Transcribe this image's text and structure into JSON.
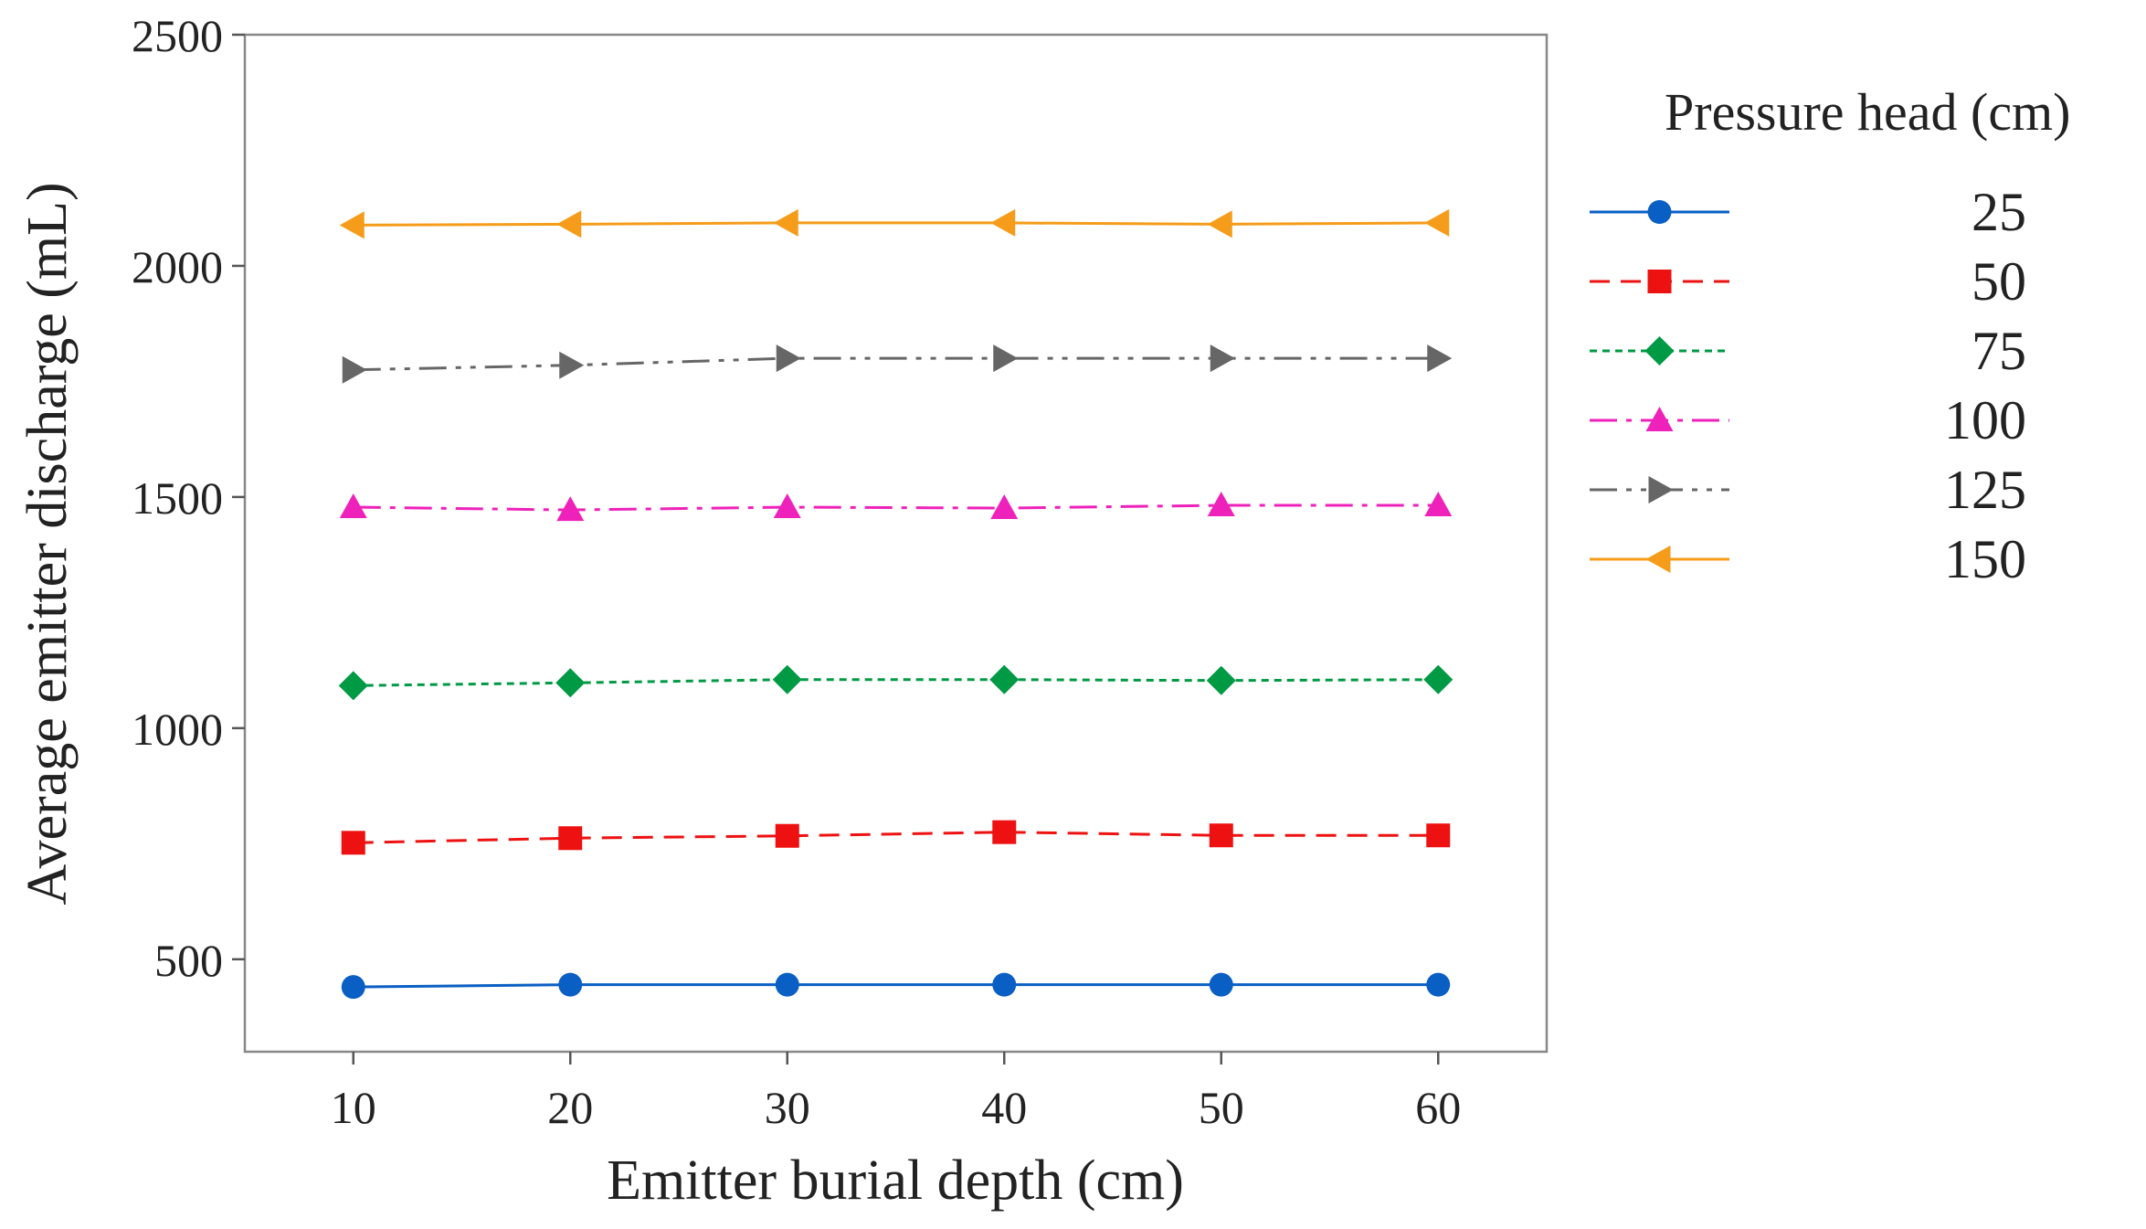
{
  "chart_data": {
    "type": "line",
    "title": "",
    "xlabel": "Emitter burial depth (cm)",
    "ylabel": "Average emitter discharge (mL)",
    "x": [
      10,
      20,
      30,
      40,
      50,
      60
    ],
    "xlim": [
      5,
      65
    ],
    "ylim": [
      300,
      2500
    ],
    "xticks": [
      "10",
      "20",
      "30",
      "40",
      "50",
      "60"
    ],
    "yticks": [
      "500",
      "1000",
      "1500",
      "2000",
      "2500"
    ],
    "legend_title": "Pressure head (cm)",
    "legend_position": "right",
    "series": [
      {
        "name": "25",
        "color": "#0a5fc4",
        "marker": "circle",
        "dash": "solid",
        "values": [
          440,
          445,
          445,
          445,
          445,
          445
        ]
      },
      {
        "name": "50",
        "color": "#ee1111",
        "marker": "square",
        "dash": "dashed",
        "values": [
          752,
          762,
          767,
          775,
          768,
          768
        ]
      },
      {
        "name": "75",
        "color": "#009944",
        "marker": "diamond",
        "dash": "dotted",
        "values": [
          1092,
          1098,
          1105,
          1105,
          1103,
          1105
        ]
      },
      {
        "name": "100",
        "color": "#ee22bb",
        "marker": "triangle-up",
        "dash": "dashdot",
        "values": [
          1478,
          1472,
          1478,
          1476,
          1482,
          1482
        ]
      },
      {
        "name": "125",
        "color": "#666666",
        "marker": "triangle-right",
        "dash": "dashdotdot",
        "values": [
          1775,
          1785,
          1800,
          1800,
          1800,
          1800
        ]
      },
      {
        "name": "150",
        "color": "#f59c1a",
        "marker": "triangle-left",
        "dash": "solid",
        "values": [
          2088,
          2090,
          2093,
          2093,
          2090,
          2093
        ]
      }
    ]
  }
}
